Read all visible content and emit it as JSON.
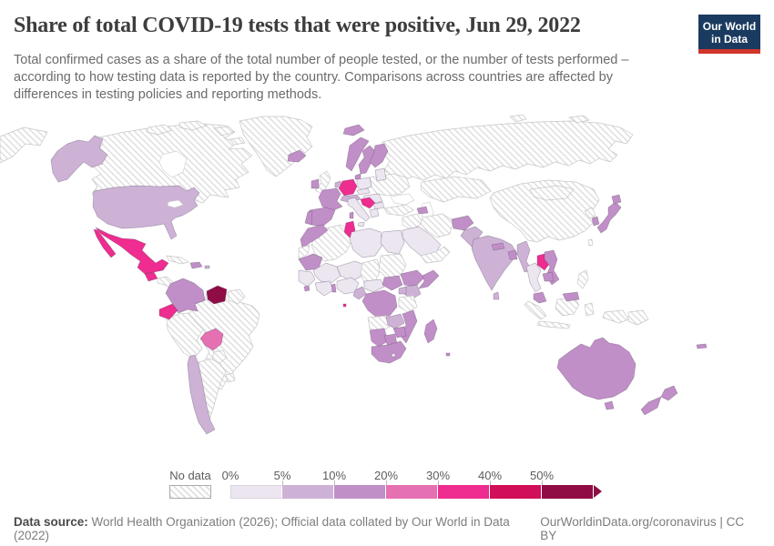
{
  "header": {
    "title": "Share of total COVID-19 tests that were positive, Jun 29, 2022",
    "logo": {
      "line1": "Our World",
      "line2": "in Data",
      "bg_color": "#1a3a5f",
      "stripe_color": "#d0352c"
    }
  },
  "subtitle": {
    "lines": [
      "Total confirmed cases as a share of the total number of people tested, or the number of tests performed –",
      "according to how testing data is reported by the country. Comparisons across countries are affected by",
      "differences in testing policies and reporting methods."
    ]
  },
  "legend": {
    "no_data_label": "No data",
    "tick_labels": [
      "0%",
      "5%",
      "10%",
      "20%",
      "30%",
      "40%",
      "50%"
    ]
  },
  "footer": {
    "source_label": "Data source:",
    "source_text": "World Health Organization (2026); Official data collated by Our World in Data (2022)",
    "link_text": "OurWorldinData.org/coronavirus | CC BY"
  },
  "chart_data": {
    "type": "heatmap",
    "subtype": "world-choropleth-map",
    "title": "Share of total COVID-19 tests that were positive",
    "date": "Jun 29, 2022",
    "unit": "share of tests positive (%)",
    "legend_bins": [
      {
        "range": "0-5%",
        "color": "#ebe6f0"
      },
      {
        "range": "5-10%",
        "color": "#cdb2d6"
      },
      {
        "range": "10-20%",
        "color": "#c18fc7"
      },
      {
        "range": "20-30%",
        "color": "#e570b2"
      },
      {
        "range": "30-40%",
        "color": "#ef2c8f"
      },
      {
        "range": "40-50%",
        "color": "#d10f58"
      },
      {
        "range": "50%+",
        "color": "#900c45"
      }
    ],
    "bin_colors": {
      "no-data": "hatch",
      "0-5": "#ebe6f0",
      "5-10": "#cdb2d6",
      "10-20": "#c18fc7",
      "20-30": "#e570b2",
      "30-40": "#ef2c8f",
      "40-50": "#d10f58",
      "50+": "#900c45"
    },
    "country_bins": {
      "chukotka": "no-data",
      "alaska": "5-10",
      "canada": "no-data",
      "arctic-island-1": "no-data",
      "arctic-island-2": "no-data",
      "arctic-island-3": "no-data",
      "arctic-island-4": "no-data",
      "greenland": "no-data",
      "iceland": "10-20",
      "svalbard": "10-20",
      "usa": "5-10",
      "mexico": "30-40",
      "baja-california": "30-40",
      "guatemala": "30-40",
      "central-america": "no-data",
      "panama": "10-20",
      "cuba": "no-data",
      "dominican-republic": "10-20",
      "puerto-rico": "5-10",
      "colombia": "10-20",
      "venezuela": "50+",
      "guyanas": "no-data",
      "ecuador": "30-40",
      "peru": "no-data",
      "brazil": "no-data",
      "bolivia": "20-30",
      "paraguay": "no-data",
      "uruguay": "no-data",
      "chile": "5-10",
      "argentina": "no-data",
      "uk": "no-data",
      "ireland": "10-20",
      "norway": "10-20",
      "sweden": "10-20",
      "finland": "10-20",
      "denmark": "10-20",
      "baltics": "0-5",
      "poland": "0-5",
      "germany": "30-40",
      "benelux": "5-10",
      "france": "10-20",
      "switzerland-austria": "5-10",
      "czech-slovakia": "0-5",
      "hungary-romania": "0-5",
      "croatia-serbia": "30-40",
      "bulgaria": "0-5",
      "greece": "0-5",
      "italy": "0-5",
      "sicily": "0-5",
      "sardinia": "10-20",
      "spain": "10-20",
      "portugal": "10-20",
      "ukraine-belarus": "no-data",
      "russia": "no-data",
      "arctic-island-ru1": "no-data",
      "arctic-island-ru2": "no-data",
      "kazakhstan-central-asia": "no-data",
      "turkey": "no-data",
      "azerbaijan": "10-20",
      "syria-iraq": "no-data",
      "iran": "no-data",
      "saudi-arabia": "0-5",
      "yemen-oman": "no-data",
      "afghanistan": "10-20",
      "pakistan": "5-10",
      "india": "5-10",
      "nepal": "10-20",
      "bangladesh": "10-20",
      "sri-lanka": "5-10",
      "china": "no-data",
      "mongolia": "no-data",
      "myanmar": "5-10",
      "thailand": "0-5",
      "laos": "30-40",
      "vietnam": "10-20",
      "cambodia": "10-20",
      "malaysia": "10-20",
      "malaysia-borneo": "10-20",
      "sumatra": "no-data",
      "java": "no-data",
      "borneo": "no-data",
      "sulawesi": "no-data",
      "west-new-guinea": "no-data",
      "papua-new-guinea": "no-data",
      "philippines": "no-data",
      "north-korea": "no-data",
      "south-korea": "10-20",
      "japan": "10-20",
      "hokkaido": "10-20",
      "taiwan": "no-data",
      "morocco": "10-20",
      "western-sahara": "no-data",
      "mauritania": "10-20",
      "mali": "0-5",
      "senegal-guinea": "0-5",
      "sierra-leone": "10-20",
      "ivory-coast-ghana": "0-5",
      "togo-benin": "10-20",
      "algeria": "no-data",
      "tunisia": "30-40",
      "libya": "0-5",
      "egypt": "0-5",
      "niger": "0-5",
      "chad": "no-data",
      "sudan": "no-data",
      "nigeria": "0-5",
      "cameroon": "5-10",
      "central-african-republic": "0-5",
      "south-sudan": "10-20",
      "ethiopia": "10-20",
      "somalia": "10-20",
      "kenya": "5-10",
      "uganda": "5-10",
      "drc": "10-20",
      "tanzania": "no-data",
      "angola": "no-data",
      "zambia": "5-10",
      "mozambique": "10-20",
      "zimbabwe": "10-20",
      "namibia": "10-20",
      "botswana": "10-20",
      "south-africa": "10-20",
      "lesotho": "0-5",
      "madagascar": "10-20",
      "sao-tome": "30-40",
      "mauritius": "10-20",
      "australia": "10-20",
      "tasmania": "10-20",
      "nz-north": "10-20",
      "nz-south": "10-20",
      "new-caledonia": "10-20"
    }
  }
}
